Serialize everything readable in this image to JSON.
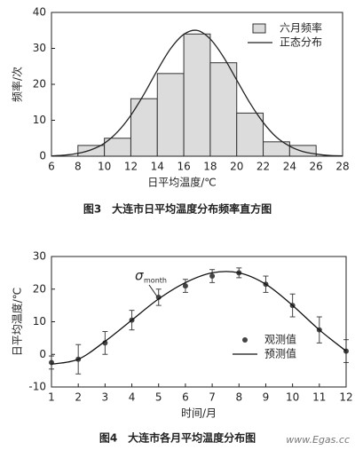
{
  "chart_data": [
    {
      "type": "histogram",
      "caption": "图3　大连市日平均温度分布频率直方图",
      "xlabel": "日平均温度/℃",
      "ylabel": "频率/次",
      "xlim": [
        6,
        28
      ],
      "xticks": [
        6,
        8,
        10,
        12,
        14,
        16,
        18,
        20,
        22,
        24,
        26,
        28
      ],
      "ylim": [
        0,
        40
      ],
      "yticks": [
        0,
        10,
        20,
        30,
        40
      ],
      "bins": [
        8,
        10,
        12,
        14,
        16,
        18,
        20,
        22,
        24,
        26
      ],
      "series": [
        {
          "name": "六月频率",
          "type": "histogram",
          "color": "#dcdcdc",
          "values": [
            3,
            5,
            16,
            23,
            34,
            26,
            12,
            4,
            3
          ]
        },
        {
          "name": "正态分布",
          "type": "line",
          "color": "#222222",
          "x": [
            6,
            7,
            8,
            9,
            10,
            11,
            12,
            13,
            14,
            15,
            16,
            17,
            18,
            19,
            20,
            21,
            22,
            23,
            24,
            25,
            26,
            27,
            28
          ],
          "values": [
            0.1,
            0.3,
            0.8,
            1.8,
            3.6,
            6.8,
            11.4,
            17.3,
            23.9,
            29.9,
            33.9,
            35.0,
            32.6,
            27.6,
            21.2,
            14.8,
            9.4,
            5.3,
            2.8,
            1.3,
            0.6,
            0.2,
            0.1
          ]
        }
      ]
    },
    {
      "type": "line",
      "caption": "图4　大连市各月平均温度分布图",
      "xlabel": "时间/月",
      "ylabel": "日平均温度/℃",
      "xlim": [
        1,
        12
      ],
      "xticks": [
        1,
        2,
        3,
        4,
        5,
        6,
        7,
        8,
        9,
        10,
        11,
        12
      ],
      "ylim": [
        -10,
        30
      ],
      "yticks": [
        -10,
        0,
        10,
        20,
        30
      ],
      "x": [
        1,
        2,
        3,
        4,
        5,
        6,
        7,
        8,
        9,
        10,
        11,
        12
      ],
      "series": [
        {
          "name": "观测值",
          "type": "scatter",
          "color": "#444444",
          "values": [
            -2.5,
            -1.5,
            3.5,
            10.5,
            17.5,
            21,
            24,
            25,
            21.5,
            15,
            7.5,
            1
          ],
          "errors": [
            2,
            4.5,
            3.5,
            3,
            2.5,
            2,
            2,
            1.5,
            2.5,
            3.5,
            4,
            3.5
          ]
        },
        {
          "name": "预测值",
          "type": "line",
          "color": "#111111",
          "values": [
            -3,
            -1.5,
            4,
            10.5,
            17,
            22,
            25,
            25,
            21.5,
            15,
            7.5,
            1
          ]
        }
      ],
      "annotation": {
        "symbol": "σ",
        "subscript": "month"
      },
      "watermark": "www.Egas.cc"
    }
  ]
}
